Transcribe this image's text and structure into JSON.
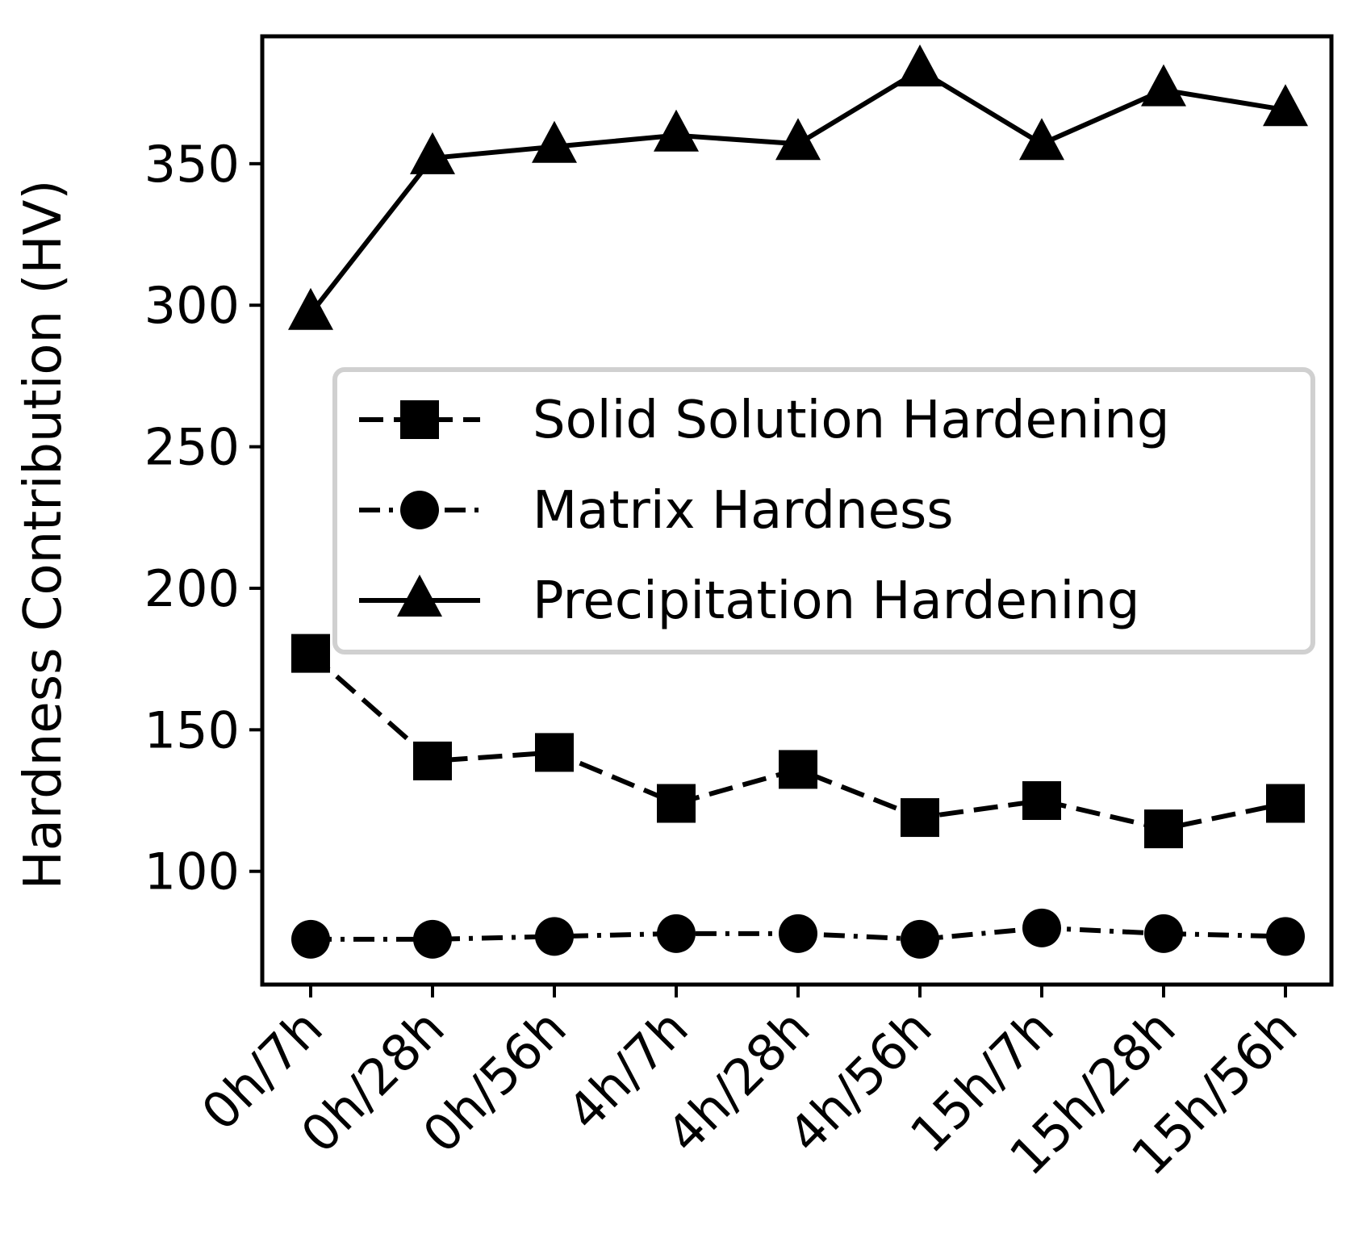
{
  "chart_data": {
    "type": "line",
    "title": "",
    "xlabel": "",
    "ylabel": "Hardness Contribution (HV)",
    "categories": [
      "0h/7h",
      "0h/28h",
      "0h/56h",
      "4h/7h",
      "4h/28h",
      "4h/56h",
      "15h/7h",
      "15h/28h",
      "15h/56h"
    ],
    "ylim": [
      60,
      395
    ],
    "yticks": [
      100,
      150,
      200,
      250,
      300,
      350
    ],
    "grid": false,
    "legend_position": "center-right",
    "series": [
      {
        "name": "Solid Solution Hardening",
        "marker": "square",
        "line_style": "dashed",
        "color": "#000000",
        "values": [
          177,
          139,
          142,
          124,
          136,
          119,
          125,
          115,
          124
        ]
      },
      {
        "name": "Matrix Hardness",
        "marker": "circle",
        "line_style": "dashdot",
        "color": "#000000",
        "values": [
          76,
          76,
          77,
          78,
          78,
          76,
          80,
          78,
          77
        ]
      },
      {
        "name": "Precipitation Hardening",
        "marker": "triangle",
        "line_style": "solid",
        "color": "#000000",
        "values": [
          297,
          352,
          356,
          360,
          357,
          383,
          357,
          376,
          369
        ]
      }
    ]
  }
}
